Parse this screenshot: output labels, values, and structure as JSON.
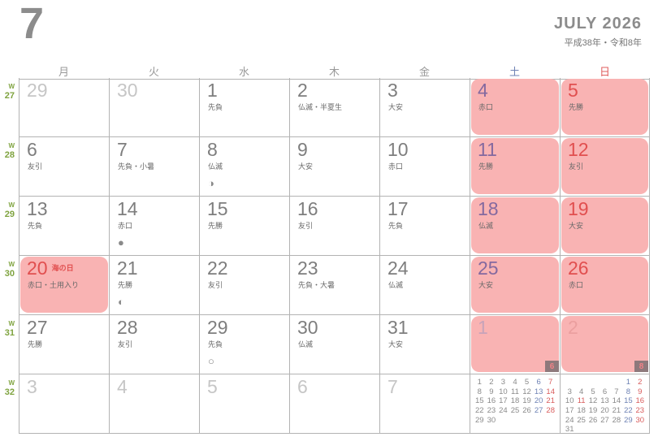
{
  "header": {
    "month_number": "7",
    "title": "JULY 2026",
    "era": "平成38年・令和8年"
  },
  "week_prefix": "W",
  "colors": {
    "weekend_bg": "#f9b3b3",
    "saturday": "#84699f",
    "sunday": "#e14f4f",
    "week_label": "#7fa33f",
    "grid_line": "#b3b3b3",
    "badge_bg": "#8e797c"
  },
  "day_headers": [
    {
      "label": "月",
      "type": "weekday"
    },
    {
      "label": "火",
      "type": "weekday"
    },
    {
      "label": "水",
      "type": "weekday"
    },
    {
      "label": "木",
      "type": "weekday"
    },
    {
      "label": "金",
      "type": "weekday"
    },
    {
      "label": "土",
      "type": "sat"
    },
    {
      "label": "日",
      "type": "sun"
    }
  ],
  "weeks": [
    {
      "num": "27",
      "days": [
        {
          "date": "29",
          "type": "prev"
        },
        {
          "date": "30",
          "type": "prev"
        },
        {
          "date": "1",
          "rokuyo": "先負"
        },
        {
          "date": "2",
          "rokuyo": "仏滅・半夏生"
        },
        {
          "date": "3",
          "rokuyo": "大安"
        },
        {
          "date": "4",
          "rokuyo": "赤口",
          "weekend": "sat",
          "pink": true
        },
        {
          "date": "5",
          "rokuyo": "先勝",
          "weekend": "sun",
          "pink": true
        }
      ]
    },
    {
      "num": "28",
      "days": [
        {
          "date": "6",
          "rokuyo": "友引"
        },
        {
          "date": "7",
          "rokuyo": "先負・小暑"
        },
        {
          "date": "8",
          "rokuyo": "仏滅",
          "moon": "◑"
        },
        {
          "date": "9",
          "rokuyo": "大安"
        },
        {
          "date": "10",
          "rokuyo": "赤口"
        },
        {
          "date": "11",
          "rokuyo": "先勝",
          "weekend": "sat",
          "pink": true
        },
        {
          "date": "12",
          "rokuyo": "友引",
          "weekend": "sun",
          "pink": true
        }
      ]
    },
    {
      "num": "29",
      "days": [
        {
          "date": "13",
          "rokuyo": "先負"
        },
        {
          "date": "14",
          "rokuyo": "赤口",
          "moon": "●"
        },
        {
          "date": "15",
          "rokuyo": "先勝"
        },
        {
          "date": "16",
          "rokuyo": "友引"
        },
        {
          "date": "17",
          "rokuyo": "先負"
        },
        {
          "date": "18",
          "rokuyo": "仏滅",
          "weekend": "sat",
          "pink": true
        },
        {
          "date": "19",
          "rokuyo": "大安",
          "weekend": "sun",
          "pink": true
        }
      ]
    },
    {
      "num": "30",
      "days": [
        {
          "date": "20",
          "rokuyo": "赤口・土用入り",
          "holiday_name": "海の日",
          "holiday": true,
          "pink": true
        },
        {
          "date": "21",
          "rokuyo": "先勝",
          "moon": "◐"
        },
        {
          "date": "22",
          "rokuyo": "友引"
        },
        {
          "date": "23",
          "rokuyo": "先負・大暑"
        },
        {
          "date": "24",
          "rokuyo": "仏滅"
        },
        {
          "date": "25",
          "rokuyo": "大安",
          "weekend": "sat",
          "pink": true
        },
        {
          "date": "26",
          "rokuyo": "赤口",
          "weekend": "sun",
          "pink": true
        }
      ]
    },
    {
      "num": "31",
      "days": [
        {
          "date": "27",
          "rokuyo": "先勝"
        },
        {
          "date": "28",
          "rokuyo": "友引"
        },
        {
          "date": "29",
          "rokuyo": "先負",
          "moon": "○"
        },
        {
          "date": "30",
          "rokuyo": "仏滅"
        },
        {
          "date": "31",
          "rokuyo": "大安"
        },
        {
          "date": "1",
          "type": "next",
          "weekend": "sat",
          "pink": true,
          "badge": "6"
        },
        {
          "date": "2",
          "type": "next",
          "weekend": "sun",
          "pink": true,
          "badge": "8"
        }
      ]
    },
    {
      "num": "32",
      "days": [
        {
          "date": "3",
          "type": "next"
        },
        {
          "date": "4",
          "type": "next"
        },
        {
          "date": "5",
          "type": "next"
        },
        {
          "date": "6",
          "type": "next"
        },
        {
          "date": "7",
          "type": "next"
        },
        {
          "minical": 0
        },
        {
          "minical": 1
        }
      ]
    }
  ],
  "mini_calendars": [
    {
      "month": "6",
      "holidays": [],
      "rows": [
        [
          "1",
          "2",
          "3",
          "4",
          "5",
          "6",
          "7"
        ],
        [
          "8",
          "9",
          "10",
          "11",
          "12",
          "13",
          "14"
        ],
        [
          "15",
          "16",
          "17",
          "18",
          "19",
          "20",
          "21"
        ],
        [
          "22",
          "23",
          "24",
          "25",
          "26",
          "27",
          "28"
        ],
        [
          "29",
          "30",
          "",
          "",
          "",
          "",
          ""
        ]
      ]
    },
    {
      "month": "8",
      "holidays": [
        "11"
      ],
      "rows": [
        [
          "",
          "",
          "",
          "",
          "",
          "1",
          "2"
        ],
        [
          "3",
          "4",
          "5",
          "6",
          "7",
          "8",
          "9"
        ],
        [
          "10",
          "11",
          "12",
          "13",
          "14",
          "15",
          "16"
        ],
        [
          "17",
          "18",
          "19",
          "20",
          "21",
          "22",
          "23"
        ],
        [
          "24",
          "25",
          "26",
          "27",
          "28",
          "29",
          "30"
        ],
        [
          "31",
          "",
          "",
          "",
          "",
          "",
          ""
        ]
      ]
    }
  ]
}
